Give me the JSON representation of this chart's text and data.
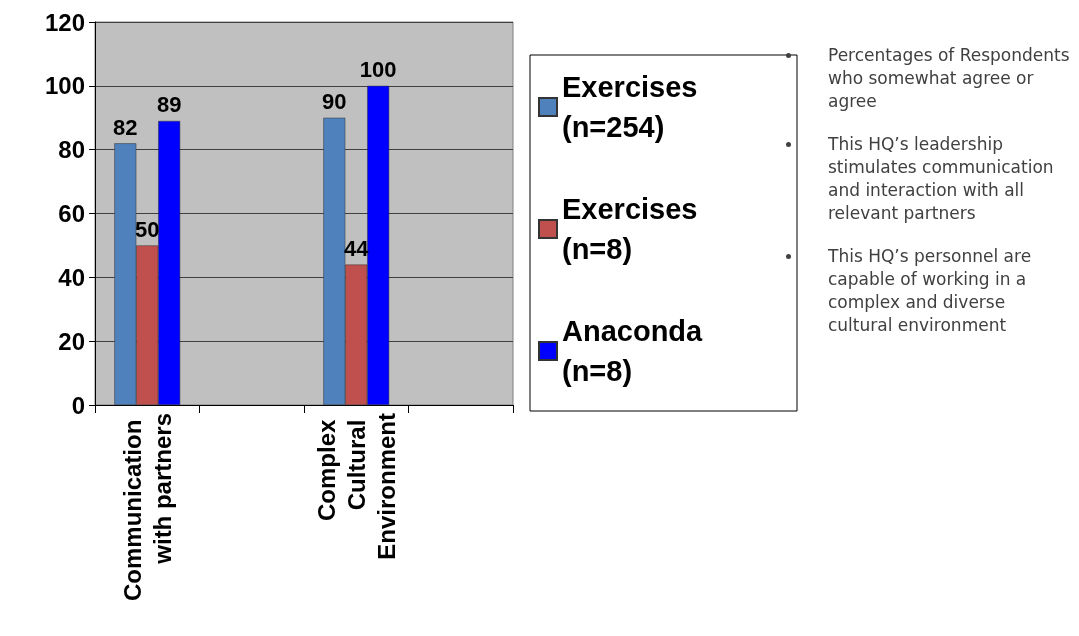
{
  "chart_data": {
    "type": "bar",
    "categories": [
      "Communication with partners",
      null,
      "Complex Cultural Environment",
      null
    ],
    "series": [
      {
        "name": "Exercises (n=254)",
        "color": "#4f81bd",
        "values": [
          82,
          null,
          90,
          null
        ]
      },
      {
        "name": "Exercises (n=8)",
        "color": "#c0504d",
        "values": [
          50,
          null,
          44,
          null
        ]
      },
      {
        "name": "Anaconda (n=8)",
        "color": "#0000ff",
        "values": [
          89,
          null,
          100,
          null
        ]
      }
    ],
    "ylim": [
      0,
      120
    ],
    "yticks": [
      0,
      20,
      40,
      60,
      80,
      100,
      120
    ],
    "grid": "y",
    "legend": "right",
    "data_labels": true,
    "annotations": [
      "Percentages of Respondents who somewhat agree or agree",
      "This HQ’s leadership stimulates communication and interaction with all relevant partners",
      "This HQ’s personnel are capable of working in a complex and diverse cultural environment"
    ]
  }
}
